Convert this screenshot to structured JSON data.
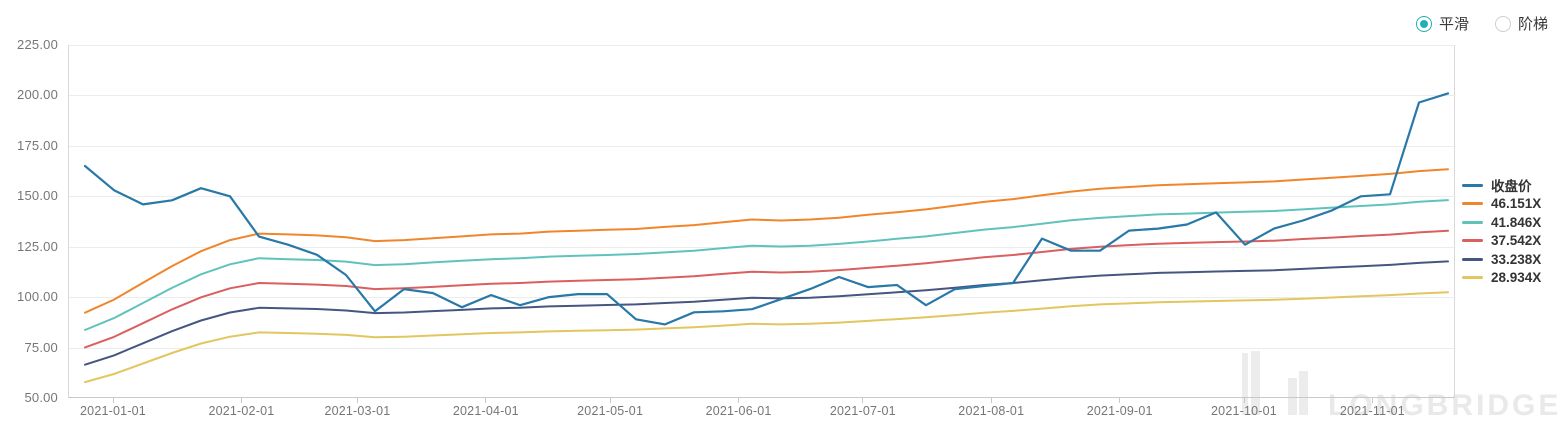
{
  "controls": {
    "smooth_label": "平滑",
    "step_label": "阶梯",
    "selected": "平滑",
    "accent_color": "#23aeb8"
  },
  "watermark": {
    "text": "LONGBRIDGE"
  },
  "chart_data": {
    "type": "line",
    "title": "",
    "xlabel": "",
    "ylabel": "",
    "ylim": [
      50,
      225
    ],
    "grid": true,
    "legend_position": "right",
    "background_color": "#ffffff",
    "y_tick_labels": [
      "225.00",
      "200.00",
      "175.00",
      "150.00",
      "125.00",
      "100.00",
      "75.00",
      "50.00"
    ],
    "x_tick_labels": [
      "2021-01-01",
      "2021-02-01",
      "2021-03-01",
      "2021-04-01",
      "2021-05-01",
      "2021-06-01",
      "2021-07-01",
      "2021-08-01",
      "2021-09-01",
      "2021-10-01",
      "2021-11-01"
    ],
    "x": [
      "2020-12-25",
      "2021-01-01",
      "2021-01-08",
      "2021-01-15",
      "2021-01-22",
      "2021-01-29",
      "2021-02-05",
      "2021-02-12",
      "2021-02-19",
      "2021-02-26",
      "2021-03-05",
      "2021-03-12",
      "2021-03-19",
      "2021-03-26",
      "2021-04-02",
      "2021-04-09",
      "2021-04-16",
      "2021-04-23",
      "2021-04-30",
      "2021-05-07",
      "2021-05-14",
      "2021-05-21",
      "2021-05-28",
      "2021-06-04",
      "2021-06-11",
      "2021-06-18",
      "2021-06-25",
      "2021-07-02",
      "2021-07-09",
      "2021-07-16",
      "2021-07-23",
      "2021-07-30",
      "2021-08-06",
      "2021-08-13",
      "2021-08-20",
      "2021-08-27",
      "2021-09-03",
      "2021-09-10",
      "2021-09-17",
      "2021-09-24",
      "2021-10-01",
      "2021-10-08",
      "2021-10-15",
      "2021-10-22",
      "2021-10-29",
      "2021-11-05",
      "2021-11-12",
      "2021-11-19"
    ],
    "series": [
      {
        "key": "close-price",
        "name": "收盘价",
        "color": "#2878a8",
        "values": [
          165,
          153,
          146,
          148,
          154,
          150,
          130,
          126,
          121,
          111,
          93,
          104,
          102,
          95,
          101,
          96,
          100,
          101.5,
          101.5,
          89,
          86.5,
          92.5,
          93,
          94,
          99,
          104,
          110,
          105,
          106,
          96,
          104,
          105.5,
          107,
          129,
          123,
          123,
          133,
          134,
          136,
          142,
          126,
          134,
          138,
          143,
          150,
          151,
          196.5,
          201
        ]
      },
      {
        "key": "pe-46-151x",
        "name": "46.151X",
        "multiple": 46.151,
        "color": "#f0862b",
        "values": [
          92.3,
          98.8,
          107.1,
          115.4,
          122.8,
          128.3,
          131.5,
          131.1,
          130.6,
          129.7,
          127.8,
          128.3,
          129.2,
          130.1,
          131.1,
          131.5,
          132.5,
          132.9,
          133.4,
          133.8,
          134.8,
          135.7,
          137.1,
          138.5,
          138.0,
          138.5,
          139.4,
          140.8,
          142.1,
          143.5,
          145.4,
          147.2,
          148.6,
          150.5,
          152.3,
          153.7,
          154.6,
          155.5,
          156.0,
          156.5,
          156.9,
          157.4,
          158.3,
          159.2,
          160.1,
          161.1,
          162.5,
          163.4
        ]
      },
      {
        "key": "pe-41-846x",
        "name": "41.846X",
        "multiple": 41.846,
        "color": "#5fc3bc",
        "values": [
          83.7,
          89.6,
          97.1,
          104.6,
          111.3,
          116.3,
          119.3,
          118.8,
          118.4,
          117.6,
          115.9,
          116.3,
          117.2,
          118.0,
          118.8,
          119.3,
          120.1,
          120.5,
          120.9,
          121.4,
          122.2,
          123.0,
          124.3,
          125.5,
          125.1,
          125.5,
          126.4,
          127.6,
          128.9,
          130.1,
          131.8,
          133.5,
          134.7,
          136.4,
          138.1,
          139.3,
          140.2,
          141.0,
          141.4,
          141.9,
          142.3,
          142.7,
          143.5,
          144.4,
          145.2,
          146.0,
          147.3,
          148.1
        ]
      },
      {
        "key": "pe-37-542x",
        "name": "37.542X",
        "multiple": 37.542,
        "color": "#da5f5f",
        "values": [
          75.1,
          80.3,
          87.1,
          93.9,
          99.9,
          104.4,
          107.0,
          106.6,
          106.2,
          105.5,
          104.0,
          104.4,
          105.1,
          105.9,
          106.6,
          107.0,
          107.7,
          108.1,
          108.5,
          108.9,
          109.6,
          110.4,
          111.5,
          112.6,
          112.2,
          112.6,
          113.4,
          114.5,
          115.6,
          116.8,
          118.3,
          119.8,
          120.9,
          122.4,
          123.9,
          125.0,
          125.8,
          126.5,
          126.9,
          127.3,
          127.6,
          128.0,
          128.8,
          129.5,
          130.3,
          131.0,
          132.1,
          132.9
        ]
      },
      {
        "key": "pe-33-238x",
        "name": "33.238X",
        "multiple": 33.238,
        "color": "#455680",
        "values": [
          66.5,
          71.1,
          77.1,
          83.1,
          88.4,
          92.4,
          94.7,
          94.4,
          94.1,
          93.4,
          92.1,
          92.4,
          93.1,
          93.7,
          94.4,
          94.7,
          95.4,
          95.7,
          96.1,
          96.4,
          97.1,
          97.7,
          98.7,
          99.7,
          99.4,
          99.7,
          100.4,
          101.4,
          102.4,
          103.4,
          104.7,
          106.0,
          107.0,
          108.4,
          109.7,
          110.7,
          111.3,
          112.0,
          112.3,
          112.7,
          113.0,
          113.3,
          114.0,
          114.7,
          115.3,
          116.0,
          117.0,
          117.7
        ]
      },
      {
        "key": "pe-28-934x",
        "name": "28.934X",
        "multiple": 28.934,
        "color": "#e2c65f",
        "values": [
          57.9,
          61.9,
          67.1,
          72.3,
          77.0,
          80.4,
          82.5,
          82.2,
          81.9,
          81.3,
          80.1,
          80.4,
          81.0,
          81.6,
          82.2,
          82.5,
          83.0,
          83.3,
          83.6,
          83.9,
          84.5,
          85.1,
          85.9,
          86.8,
          86.5,
          86.8,
          87.4,
          88.2,
          89.1,
          90.0,
          91.1,
          92.3,
          93.2,
          94.3,
          95.5,
          96.4,
          96.9,
          97.5,
          97.8,
          98.1,
          98.4,
          98.7,
          99.2,
          99.8,
          100.4,
          101.0,
          101.8,
          102.4
        ]
      }
    ]
  }
}
